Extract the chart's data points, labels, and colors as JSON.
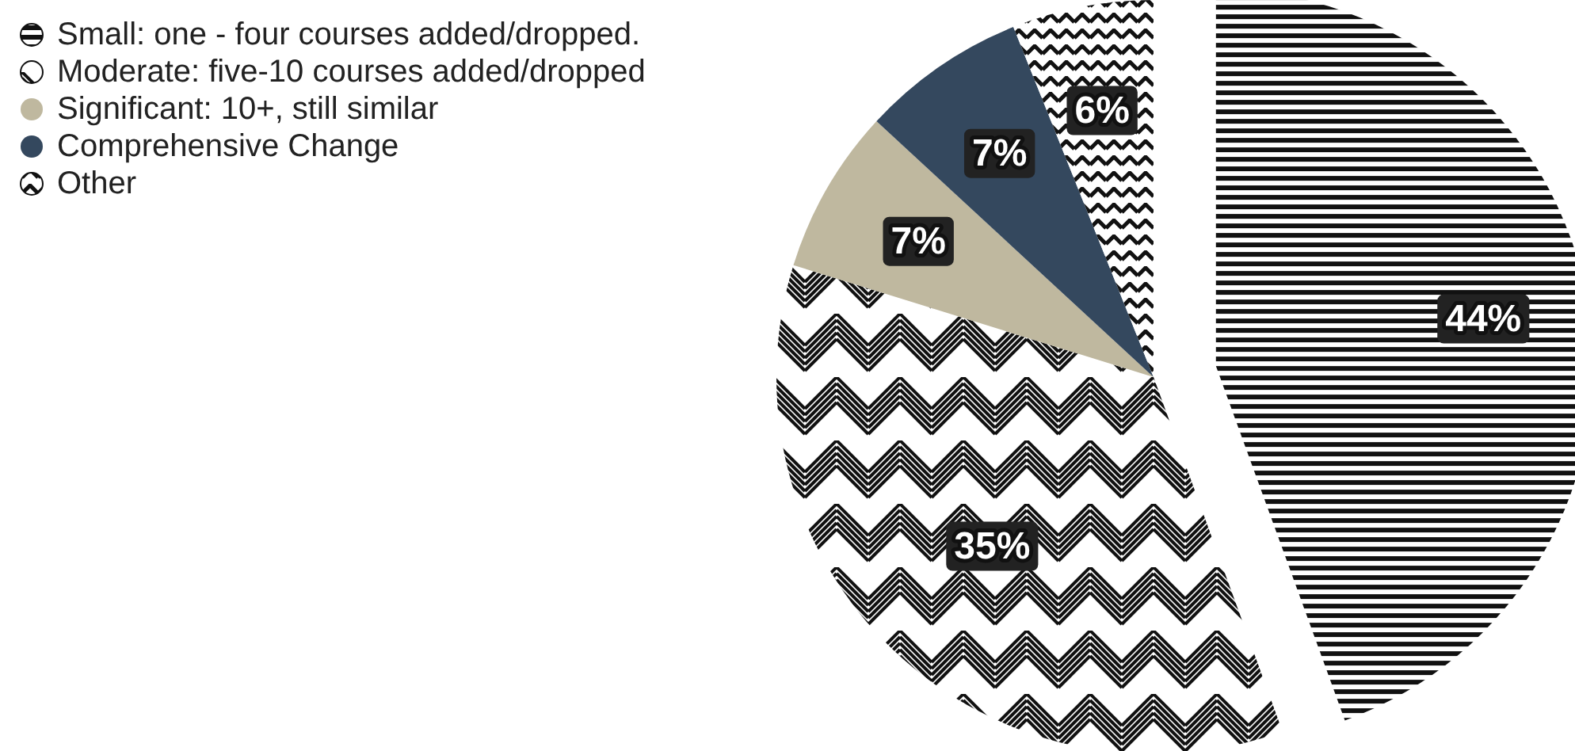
{
  "chart_data": {
    "type": "pie",
    "categories": [
      "Small: one - four courses added/dropped.",
      "Moderate: five-10 courses added/dropped",
      "Significant: 10+, still similar",
      "Comprehensive Change",
      "Other"
    ],
    "values": [
      44,
      35,
      7,
      7,
      6
    ],
    "colors": [
      "#111111",
      "#111111",
      "#bfb89f",
      "#34485e",
      "#111111"
    ],
    "value_labels": [
      "44%",
      "35%",
      "7%",
      "7%",
      "6%"
    ],
    "legend": "top left"
  }
}
